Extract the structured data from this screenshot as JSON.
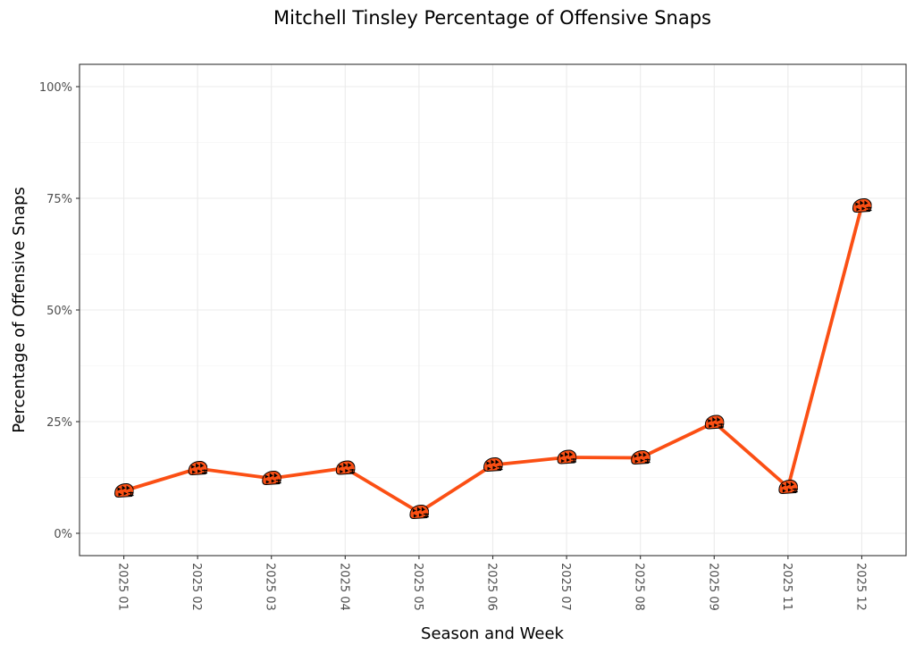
{
  "chart_data": {
    "type": "line",
    "title": "Mitchell Tinsley Percentage of Offensive Snaps",
    "xlabel": "Season and Week",
    "ylabel": "Percentage of Offensive Snaps",
    "categories": [
      "2025 01",
      "2025 02",
      "2025 03",
      "2025 04",
      "2025 05",
      "2025 06",
      "2025 07",
      "2025 08",
      "2025 09",
      "2025 11",
      "2025 12"
    ],
    "series": [
      {
        "values": [
          9.5,
          14.5,
          12.3,
          14.6,
          4.7,
          15.3,
          17.0,
          16.9,
          24.8,
          10.3,
          73.3
        ],
        "color": "#fb4f14"
      }
    ],
    "ylim": [
      -5,
      105
    ],
    "yticks": [
      0,
      25,
      50,
      75,
      100
    ],
    "ytick_labels": [
      "0%",
      "25%",
      "50%",
      "75%",
      "100%"
    ],
    "grid": true,
    "marker_icon": "bengals-helmet-icon"
  }
}
